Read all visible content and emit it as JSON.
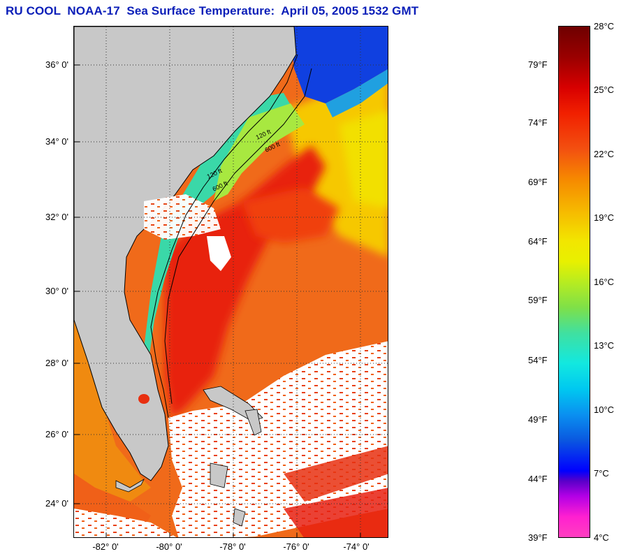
{
  "title": "RU COOL  NOAA-17  Sea Surface Temperature:  April 05, 2005 1532 GMT",
  "map": {
    "y_ticks": [
      "36° 0'",
      "34° 0'",
      "32° 0'",
      "30° 0'",
      "28° 0'",
      "26° 0'",
      "24° 0'"
    ],
    "x_ticks": [
      "-82° 0'",
      "-80° 0'",
      "-78° 0'",
      "-76° 0'",
      "-74° 0'"
    ],
    "contour_labels": [
      "120 ft",
      "600 ft",
      "120 ft",
      "600 ft"
    ],
    "colors": {
      "land": "#c8c8c8",
      "cloud": "#ffffff",
      "gulf_stream": "#e83010",
      "shelf": "#40d8a0"
    }
  },
  "colorbar": {
    "celsius": [
      "28°C",
      "25°C",
      "22°C",
      "19°C",
      "16°C",
      "13°C",
      "10°C",
      "7°C",
      "4°C"
    ],
    "fahrenheit": [
      "79°F",
      "74°F",
      "69°F",
      "64°F",
      "59°F",
      "54°F",
      "49°F",
      "44°F",
      "39°F"
    ]
  }
}
